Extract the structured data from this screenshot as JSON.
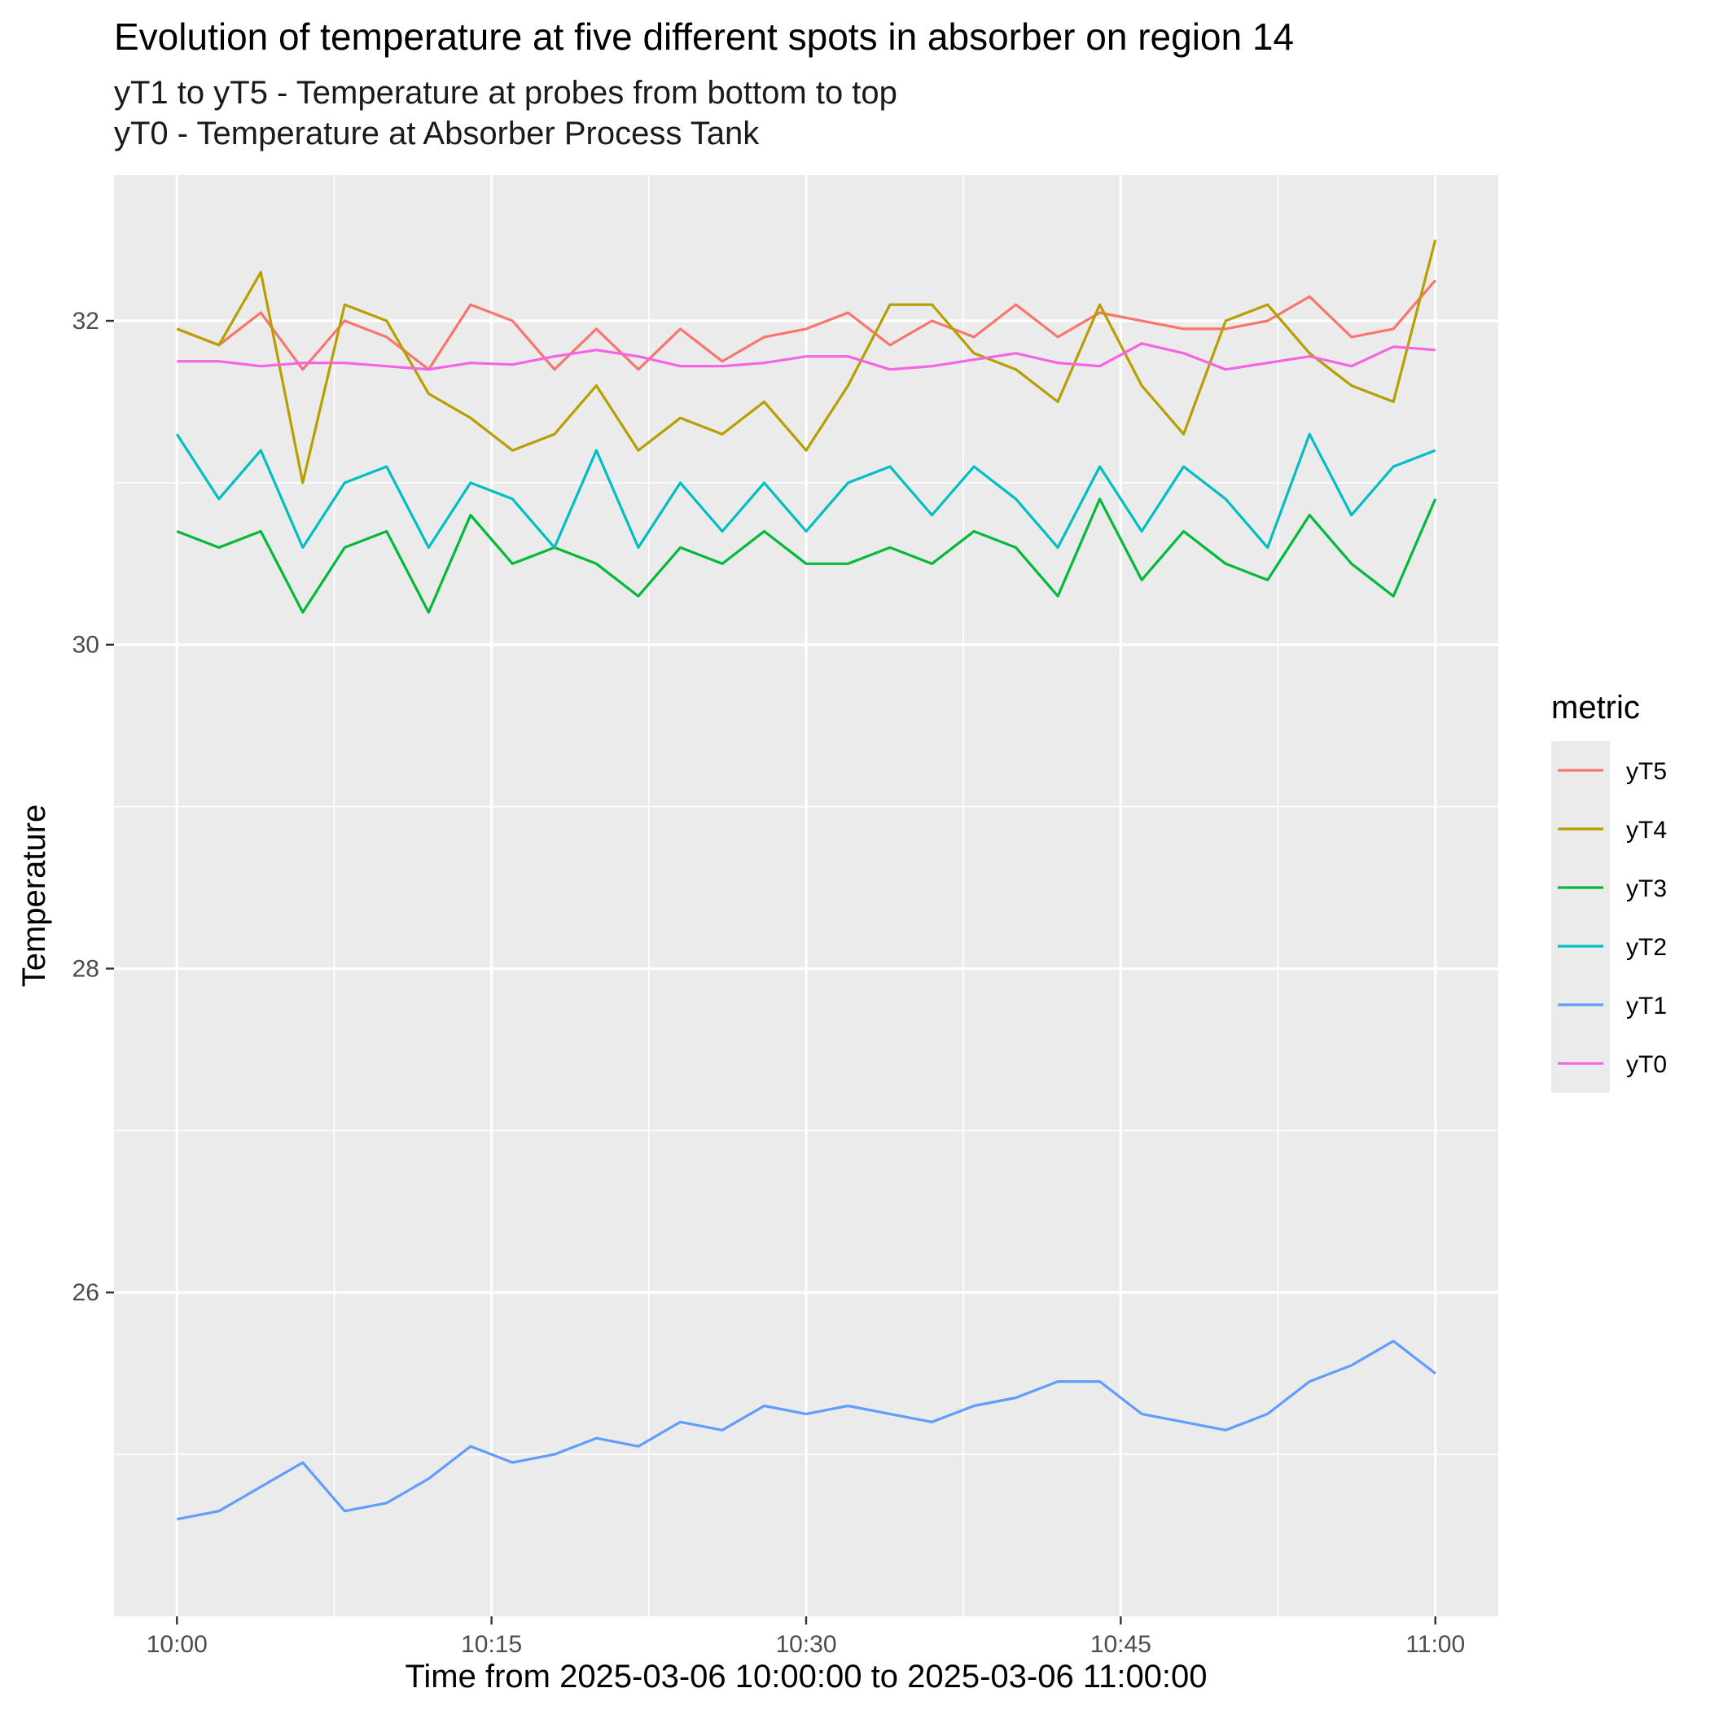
{
  "chart_data": {
    "type": "line",
    "title": "Evolution of temperature at five different spots in absorber on region 14",
    "subtitle_lines": [
      "yT1 to yT5 - Temperature at probes from bottom to top",
      "yT0 - Temperature at Absorber Process Tank"
    ],
    "xlabel": "Time from 2025-03-06 10:00:00 to 2025-03-06 11:00:00",
    "ylabel": "Temperature",
    "x_unit": "clock time (HH:MM)",
    "x_start": "10:00",
    "x_end": "11:00",
    "xlim": [
      "09:57",
      "11:03"
    ],
    "ylim": [
      24.0,
      32.9
    ],
    "x_ticks": [
      "10:00",
      "10:15",
      "10:30",
      "10:45",
      "11:00"
    ],
    "x_tick_minutes": [
      0,
      15,
      30,
      45,
      60
    ],
    "y_ticks": [
      26,
      28,
      30,
      32
    ],
    "y_tick_labels": [
      "26",
      "28",
      "30",
      "32"
    ],
    "grid": true,
    "background": "#ebebeb",
    "legend": {
      "title": "metric",
      "position": "right"
    },
    "x_points": [
      "10:00",
      "10:02",
      "10:04",
      "10:06",
      "10:08",
      "10:10",
      "10:12",
      "10:14",
      "10:16",
      "10:18",
      "10:20",
      "10:22",
      "10:24",
      "10:26",
      "10:28",
      "10:30",
      "10:32",
      "10:34",
      "10:36",
      "10:38",
      "10:40",
      "10:42",
      "10:44",
      "10:46",
      "10:48",
      "10:50",
      "10:52",
      "10:54",
      "10:56",
      "10:58",
      "11:00"
    ],
    "series": [
      {
        "name": "yT5",
        "color": "#F8766D",
        "values": [
          31.95,
          31.85,
          32.05,
          31.7,
          32.0,
          31.9,
          31.7,
          32.1,
          32.0,
          31.7,
          31.95,
          31.7,
          31.95,
          31.75,
          31.9,
          31.95,
          32.05,
          31.85,
          32.0,
          31.9,
          32.1,
          31.9,
          32.05,
          32.0,
          31.95,
          31.95,
          32.0,
          32.15,
          31.9,
          31.95,
          32.25
        ]
      },
      {
        "name": "yT4",
        "color": "#B79F00",
        "values": [
          31.95,
          31.85,
          32.3,
          31.0,
          32.1,
          32.0,
          31.55,
          31.4,
          31.2,
          31.3,
          31.6,
          31.2,
          31.4,
          31.3,
          31.5,
          31.2,
          31.6,
          32.1,
          32.1,
          31.8,
          31.7,
          31.5,
          32.1,
          31.6,
          31.3,
          32.0,
          32.1,
          31.8,
          31.6,
          31.5,
          32.5
        ]
      },
      {
        "name": "yT3",
        "color": "#00BA38",
        "values": [
          30.7,
          30.6,
          30.7,
          30.2,
          30.6,
          30.7,
          30.2,
          30.8,
          30.5,
          30.6,
          30.5,
          30.3,
          30.6,
          30.5,
          30.7,
          30.5,
          30.5,
          30.6,
          30.5,
          30.7,
          30.6,
          30.3,
          30.9,
          30.4,
          30.7,
          30.5,
          30.4,
          30.8,
          30.5,
          30.3,
          30.9
        ]
      },
      {
        "name": "yT2",
        "color": "#00BFC4",
        "values": [
          31.3,
          30.9,
          31.2,
          30.6,
          31.0,
          31.1,
          30.6,
          31.0,
          30.9,
          30.6,
          31.2,
          30.6,
          31.0,
          30.7,
          31.0,
          30.7,
          31.0,
          31.1,
          30.8,
          31.1,
          30.9,
          30.6,
          31.1,
          30.7,
          31.1,
          30.9,
          30.6,
          31.3,
          30.8,
          31.1,
          31.2
        ]
      },
      {
        "name": "yT1",
        "color": "#619CFF",
        "values": [
          24.6,
          24.65,
          24.8,
          24.95,
          24.65,
          24.7,
          24.85,
          25.05,
          24.95,
          25.0,
          25.1,
          25.05,
          25.2,
          25.15,
          25.3,
          25.25,
          25.3,
          25.25,
          25.2,
          25.3,
          25.35,
          25.45,
          25.45,
          25.25,
          25.2,
          25.15,
          25.25,
          25.45,
          25.55,
          25.7,
          25.5
        ]
      },
      {
        "name": "yT0",
        "color": "#F564E3",
        "values": [
          31.75,
          31.75,
          31.72,
          31.74,
          31.74,
          31.72,
          31.7,
          31.74,
          31.73,
          31.78,
          31.82,
          31.78,
          31.72,
          31.72,
          31.74,
          31.78,
          31.78,
          31.7,
          31.72,
          31.76,
          31.8,
          31.74,
          31.72,
          31.86,
          31.8,
          31.7,
          31.74,
          31.78,
          31.72,
          31.84,
          31.82
        ]
      }
    ]
  }
}
